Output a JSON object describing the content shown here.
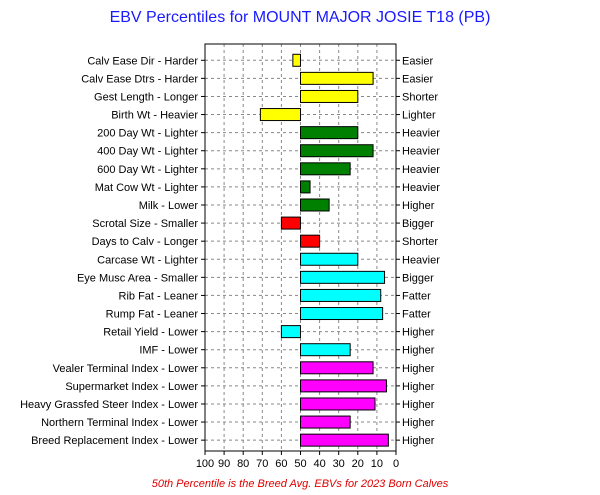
{
  "chart_data": {
    "type": "bar",
    "title": "EBV Percentiles for MOUNT MAJOR JOSIE T18 (PB)",
    "footer": "50th Percentile is the Breed Avg. EBVs for 2023 Born Calves",
    "xlim": [
      100,
      0
    ],
    "x_ticks": [
      "100",
      "90",
      "80",
      "70",
      "60",
      "50",
      "40",
      "30",
      "20",
      "10",
      "0"
    ],
    "reference_percentile": 50,
    "grid": true,
    "categories": [
      "Calv Ease Dir - Harder",
      "Calv Ease Dtrs - Harder",
      "Gest Length - Longer",
      "Birth Wt - Heavier",
      "200 Day Wt - Lighter",
      "400 Day Wt - Lighter",
      "600 Day Wt - Lighter",
      "Mat Cow Wt - Lighter",
      "Milk - Lower",
      "Scrotal Size - Smaller",
      "Days to Calv - Longer",
      "Carcase Wt - Lighter",
      "Eye Musc Area - Smaller",
      "Rib Fat - Leaner",
      "Rump Fat - Leaner",
      "Retail Yield - Lower",
      "IMF - Lower",
      "Vealer Terminal Index - Lower",
      "Supermarket Index - Lower",
      "Heavy Grassfed Steer Index - Lower",
      "Northern Terminal Index - Lower",
      "Breed Replacement Index - Lower"
    ],
    "right_labels": [
      "Easier",
      "Easier",
      "Shorter",
      "Lighter",
      "Heavier",
      "Heavier",
      "Heavier",
      "Heavier",
      "Higher",
      "Bigger",
      "Shorter",
      "Heavier",
      "Bigger",
      "Fatter",
      "Fatter",
      "Higher",
      "Higher",
      "Higher",
      "Higher",
      "Higher",
      "Higher",
      "Higher"
    ],
    "values": [
      54,
      12,
      20,
      71,
      20,
      12,
      24,
      45,
      35,
      60,
      40,
      20,
      6,
      8,
      7,
      60,
      24,
      12,
      5,
      11,
      24,
      4
    ],
    "colors": [
      "#ffff00",
      "#ffff00",
      "#ffff00",
      "#ffff00",
      "#008000",
      "#008000",
      "#008000",
      "#008000",
      "#008000",
      "#ff0000",
      "#ff0000",
      "#00ffff",
      "#00ffff",
      "#00ffff",
      "#00ffff",
      "#00ffff",
      "#00ffff",
      "#ff00ff",
      "#ff00ff",
      "#ff00ff",
      "#ff00ff",
      "#ff00ff"
    ]
  }
}
